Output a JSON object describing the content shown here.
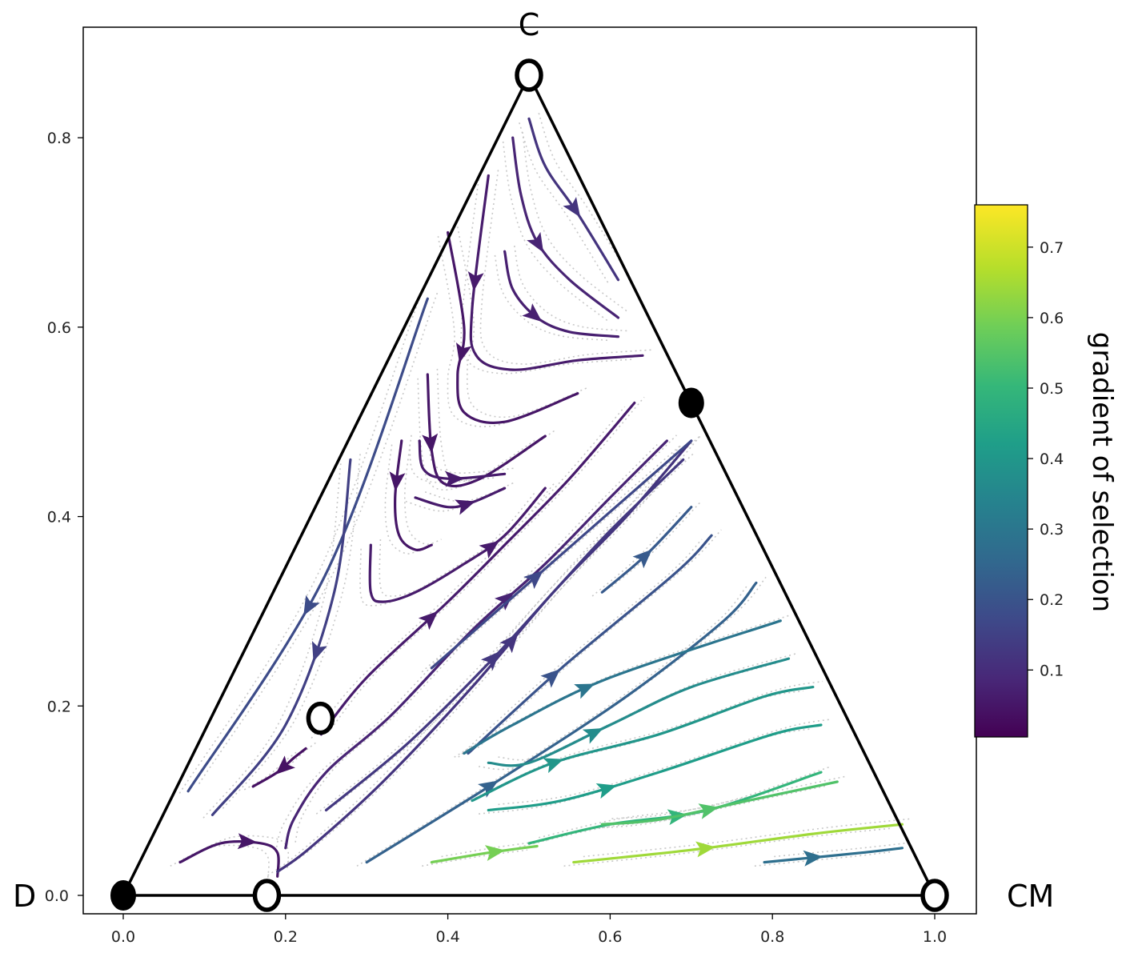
{
  "chart_data": {
    "type": "ternary-streamplot",
    "title": "",
    "vertex_labels": {
      "top": "C",
      "left": "D",
      "right": "CM"
    },
    "x_ticks": [
      "0.0",
      "0.2",
      "0.4",
      "0.6",
      "0.8",
      "1.0"
    ],
    "y_ticks": [
      "0.0",
      "0.2",
      "0.4",
      "0.6",
      "0.8"
    ],
    "xlim": [
      -0.05,
      1.05
    ],
    "ylim": [
      -0.02,
      0.92
    ],
    "simplex_vertices": [
      [
        0,
        0
      ],
      [
        1,
        0
      ],
      [
        0.5,
        0.866
      ]
    ],
    "fixed_points": [
      {
        "x": 0.0,
        "y": 0.0,
        "stability": "stable"
      },
      {
        "x": 0.5,
        "y": 0.866,
        "stability": "unstable"
      },
      {
        "x": 1.0,
        "y": 0.0,
        "stability": "unstable"
      },
      {
        "x": 0.177,
        "y": 0.0,
        "stability": "unstable"
      },
      {
        "x": 0.7,
        "y": 0.52,
        "stability": "stable"
      },
      {
        "x": 0.243,
        "y": 0.187,
        "stability": "unstable"
      }
    ],
    "streamlines": [
      {
        "v": 0.12,
        "arrow_at": 0.55,
        "points": [
          [
            0.5,
            0.82
          ],
          [
            0.52,
            0.77
          ],
          [
            0.56,
            0.72
          ],
          [
            0.61,
            0.65
          ]
        ]
      },
      {
        "v": 0.08,
        "arrow_at": 0.5,
        "points": [
          [
            0.48,
            0.8
          ],
          [
            0.49,
            0.74
          ],
          [
            0.51,
            0.69
          ],
          [
            0.55,
            0.65
          ],
          [
            0.61,
            0.61
          ]
        ]
      },
      {
        "v": 0.07,
        "arrow_at": 0.45,
        "points": [
          [
            0.47,
            0.68
          ],
          [
            0.48,
            0.64
          ],
          [
            0.51,
            0.61
          ],
          [
            0.55,
            0.595
          ],
          [
            0.61,
            0.59
          ]
        ]
      },
      {
        "v": 0.06,
        "arrow_at": 0.3,
        "points": [
          [
            0.45,
            0.76
          ],
          [
            0.43,
            0.62
          ],
          [
            0.435,
            0.57
          ],
          [
            0.48,
            0.555
          ],
          [
            0.56,
            0.565
          ],
          [
            0.64,
            0.57
          ]
        ]
      },
      {
        "v": 0.05,
        "arrow_at": 0.4,
        "points": [
          [
            0.4,
            0.7
          ],
          [
            0.42,
            0.6
          ],
          [
            0.412,
            0.55
          ],
          [
            0.42,
            0.51
          ],
          [
            0.47,
            0.5
          ],
          [
            0.56,
            0.53
          ]
        ]
      },
      {
        "v": 0.05,
        "arrow_at": 0.3,
        "points": [
          [
            0.375,
            0.55
          ],
          [
            0.38,
            0.47
          ],
          [
            0.395,
            0.435
          ],
          [
            0.44,
            0.44
          ],
          [
            0.52,
            0.485
          ]
        ]
      },
      {
        "v": 0.06,
        "arrow_at": 0.55,
        "points": [
          [
            0.365,
            0.48
          ],
          [
            0.37,
            0.45
          ],
          [
            0.4,
            0.44
          ],
          [
            0.47,
            0.445
          ]
        ]
      },
      {
        "v": 0.06,
        "arrow_at": 0.55,
        "points": [
          [
            0.36,
            0.42
          ],
          [
            0.4,
            0.41
          ],
          [
            0.43,
            0.415
          ],
          [
            0.47,
            0.43
          ]
        ]
      },
      {
        "v": 0.05,
        "arrow_at": 0.3,
        "points": [
          [
            0.343,
            0.48
          ],
          [
            0.335,
            0.42
          ],
          [
            0.34,
            0.38
          ],
          [
            0.36,
            0.365
          ],
          [
            0.38,
            0.37
          ]
        ]
      },
      {
        "v": 0.06,
        "arrow_at": 0.7,
        "points": [
          [
            0.305,
            0.37
          ],
          [
            0.305,
            0.32
          ],
          [
            0.32,
            0.31
          ],
          [
            0.36,
            0.32
          ],
          [
            0.42,
            0.35
          ],
          [
            0.47,
            0.38
          ],
          [
            0.52,
            0.43
          ]
        ]
      },
      {
        "v": 0.18,
        "arrow_at": 0.6,
        "points": [
          [
            0.375,
            0.63
          ],
          [
            0.25,
            0.34
          ],
          [
            0.08,
            0.11
          ]
        ]
      },
      {
        "v": 0.15,
        "arrow_at": 0.5,
        "points": [
          [
            0.28,
            0.46
          ],
          [
            0.26,
            0.32
          ],
          [
            0.2,
            0.18
          ],
          [
            0.11,
            0.085
          ]
        ]
      },
      {
        "v": 0.04,
        "arrow_at": 0.45,
        "points": [
          [
            0.225,
            0.155
          ],
          [
            0.21,
            0.145
          ],
          [
            0.19,
            0.13
          ],
          [
            0.16,
            0.115
          ]
        ]
      },
      {
        "v": 0.05,
        "arrow_at": 0.55,
        "points": [
          [
            0.07,
            0.035
          ],
          [
            0.12,
            0.055
          ],
          [
            0.17,
            0.055
          ],
          [
            0.19,
            0.045
          ],
          [
            0.19,
            0.02
          ]
        ]
      },
      {
        "v": 0.06,
        "arrow_at": 0.35,
        "points": [
          [
            0.244,
            0.17
          ],
          [
            0.3,
            0.23
          ],
          [
            0.4,
            0.31
          ],
          [
            0.47,
            0.37
          ],
          [
            0.55,
            0.44
          ],
          [
            0.63,
            0.52
          ]
        ]
      },
      {
        "v": 0.08,
        "arrow_at": 0.6,
        "points": [
          [
            0.2,
            0.05
          ],
          [
            0.21,
            0.08
          ],
          [
            0.25,
            0.13
          ],
          [
            0.33,
            0.19
          ],
          [
            0.43,
            0.28
          ],
          [
            0.52,
            0.35
          ],
          [
            0.6,
            0.42
          ],
          [
            0.67,
            0.48
          ]
        ]
      },
      {
        "v": 0.12,
        "arrow_at": 0.55,
        "points": [
          [
            0.19,
            0.025
          ],
          [
            0.23,
            0.05
          ],
          [
            0.32,
            0.12
          ],
          [
            0.43,
            0.22
          ],
          [
            0.53,
            0.32
          ],
          [
            0.62,
            0.4
          ],
          [
            0.7,
            0.48
          ]
        ]
      },
      {
        "v": 0.13,
        "arrow_at": 0.45,
        "points": [
          [
            0.25,
            0.09
          ],
          [
            0.35,
            0.16
          ],
          [
            0.45,
            0.245
          ],
          [
            0.53,
            0.32
          ],
          [
            0.6,
            0.385
          ],
          [
            0.69,
            0.46
          ]
        ]
      },
      {
        "v": 0.17,
        "arrow_at": 0.4,
        "points": [
          [
            0.38,
            0.24
          ],
          [
            0.52,
            0.345
          ],
          [
            0.7,
            0.48
          ]
        ]
      },
      {
        "v": 0.2,
        "arrow_at": 0.35,
        "points": [
          [
            0.425,
            0.15
          ],
          [
            0.54,
            0.24
          ],
          [
            0.68,
            0.34
          ],
          [
            0.725,
            0.38
          ]
        ]
      },
      {
        "v": 0.22,
        "arrow_at": 0.45,
        "points": [
          [
            0.59,
            0.32
          ],
          [
            0.645,
            0.36
          ],
          [
            0.7,
            0.41
          ]
        ]
      },
      {
        "v": 0.24,
        "arrow_at": 0.3,
        "points": [
          [
            0.3,
            0.035
          ],
          [
            0.46,
            0.12
          ],
          [
            0.62,
            0.21
          ],
          [
            0.74,
            0.29
          ],
          [
            0.78,
            0.33
          ]
        ]
      },
      {
        "v": 0.3,
        "arrow_at": 0.4,
        "points": [
          [
            0.42,
            0.15
          ],
          [
            0.48,
            0.18
          ],
          [
            0.6,
            0.23
          ],
          [
            0.81,
            0.29
          ]
        ]
      },
      {
        "v": 0.37,
        "arrow_at": 0.35,
        "points": [
          [
            0.45,
            0.14
          ],
          [
            0.5,
            0.14
          ],
          [
            0.6,
            0.18
          ],
          [
            0.7,
            0.22
          ],
          [
            0.82,
            0.25
          ]
        ]
      },
      {
        "v": 0.4,
        "arrow_at": 0.25,
        "points": [
          [
            0.43,
            0.1
          ],
          [
            0.53,
            0.14
          ],
          [
            0.66,
            0.17
          ],
          [
            0.79,
            0.21
          ],
          [
            0.85,
            0.22
          ]
        ]
      },
      {
        "v": 0.42,
        "arrow_at": 0.35,
        "points": [
          [
            0.45,
            0.09
          ],
          [
            0.54,
            0.1
          ],
          [
            0.66,
            0.13
          ],
          [
            0.8,
            0.17
          ],
          [
            0.86,
            0.18
          ]
        ]
      },
      {
        "v": 0.5,
        "arrow_at": 0.5,
        "points": [
          [
            0.5,
            0.055
          ],
          [
            0.6,
            0.075
          ],
          [
            0.72,
            0.09
          ],
          [
            0.86,
            0.13
          ]
        ]
      },
      {
        "v": 0.55,
        "arrow_at": 0.45,
        "points": [
          [
            0.59,
            0.075
          ],
          [
            0.66,
            0.08
          ],
          [
            0.77,
            0.1
          ],
          [
            0.88,
            0.12
          ]
        ]
      },
      {
        "v": 0.6,
        "arrow_at": 0.6,
        "points": [
          [
            0.38,
            0.035
          ],
          [
            0.45,
            0.045
          ],
          [
            0.51,
            0.052
          ]
        ]
      },
      {
        "v": 0.65,
        "arrow_at": 0.4,
        "points": [
          [
            0.555,
            0.035
          ],
          [
            0.7,
            0.048
          ],
          [
            0.85,
            0.065
          ],
          [
            0.96,
            0.075
          ]
        ]
      },
      {
        "v": 0.28,
        "arrow_at": 0.35,
        "points": [
          [
            0.79,
            0.035
          ],
          [
            0.85,
            0.04
          ],
          [
            0.91,
            0.045
          ],
          [
            0.96,
            0.05
          ]
        ]
      }
    ],
    "colorbar": {
      "label": "gradient of selection",
      "range": [
        0.005,
        0.76
      ],
      "colormap": "viridis",
      "ticks": [
        "0.1",
        "0.2",
        "0.3",
        "0.4",
        "0.5",
        "0.6",
        "0.7"
      ],
      "tick_values": [
        0.1,
        0.2,
        0.3,
        0.4,
        0.5,
        0.6,
        0.7
      ]
    }
  }
}
